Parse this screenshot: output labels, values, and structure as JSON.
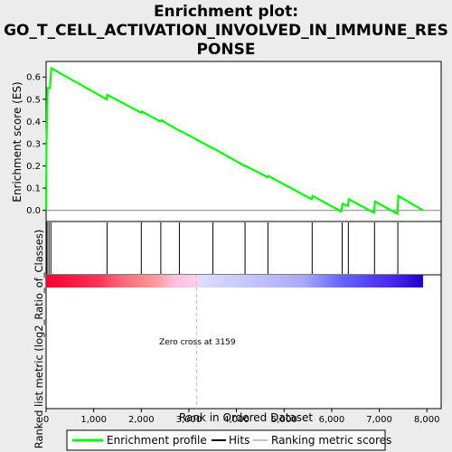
{
  "title_lines": [
    "Enrichment plot:",
    "GO_T_CELL_ACTIVATION_INVOLVED_IN_IMMUNE_RES",
    "PONSE"
  ],
  "colors": {
    "background": "#ececec",
    "plot_bg": "#ffffff",
    "es_line": "#00ff00",
    "hit": "#000000",
    "zero_line": "#808080",
    "zero_cross_line": "#c0c0c0"
  },
  "chart_data": {
    "type": "line",
    "ylabel_top": "Enrichment score (ES)",
    "ylabel_bottom": "Ranked list metric (log2_Ratio_of_Classes)",
    "xlabel": "Rank in Ordered Dataset",
    "xlim": [
      0,
      8300
    ],
    "ylim": [
      -0.05,
      0.67
    ],
    "x_ticks": [
      0,
      1000,
      2000,
      3000,
      4000,
      5000,
      6000,
      7000,
      8000
    ],
    "x_tick_labels": [
      "0",
      "1,000",
      "2,000",
      "3,000",
      "4,000",
      "5,000",
      "6,000",
      "7,000",
      "8,000"
    ],
    "y_ticks": [
      0.0,
      0.1,
      0.2,
      0.3,
      0.4,
      0.5,
      0.6
    ],
    "y_tick_labels": [
      "0.0",
      "0.1",
      "0.2",
      "0.3",
      "0.4",
      "0.5",
      "0.6"
    ],
    "es_points": [
      [
        0,
        0.0
      ],
      [
        10,
        0.31
      ],
      [
        30,
        0.55
      ],
      [
        80,
        0.55
      ],
      [
        110,
        0.64
      ],
      [
        1270,
        0.5
      ],
      [
        1285,
        0.52
      ],
      [
        1990,
        0.44
      ],
      [
        2010,
        0.445
      ],
      [
        2400,
        0.4
      ],
      [
        2420,
        0.405
      ],
      [
        2790,
        0.36
      ],
      [
        2800,
        0.36
      ],
      [
        3500,
        0.28
      ],
      [
        3510,
        0.28
      ],
      [
        4170,
        0.2
      ],
      [
        4190,
        0.2
      ],
      [
        4650,
        0.15
      ],
      [
        4670,
        0.155
      ],
      [
        5580,
        0.05
      ],
      [
        5600,
        0.065
      ],
      [
        6200,
        -0.005
      ],
      [
        6230,
        0.03
      ],
      [
        6340,
        0.02
      ],
      [
        6360,
        0.05
      ],
      [
        6890,
        -0.01
      ],
      [
        6910,
        0.04
      ],
      [
        7380,
        -0.015
      ],
      [
        7400,
        0.065
      ],
      [
        7920,
        0.0
      ]
    ],
    "hits": [
      20,
      60,
      100,
      1280,
      2000,
      2410,
      2800,
      3505,
      4180,
      4660,
      5590,
      6220,
      6350,
      6900,
      7390
    ],
    "zero_cross_rank": 3159,
    "zero_cross_label": "Zero cross at 3159",
    "metric_gradient_stops": [
      {
        "offset": 0.0,
        "color": "#ff0033"
      },
      {
        "offset": 0.14,
        "color": "#ff3355"
      },
      {
        "offset": 0.2,
        "color": "#ff6677"
      },
      {
        "offset": 0.29,
        "color": "#ff9999"
      },
      {
        "offset": 0.34,
        "color": "#ffc0dd"
      },
      {
        "offset": 0.4,
        "color": "#ffd0ee"
      },
      {
        "offset": 0.41,
        "color": "#ddddff"
      },
      {
        "offset": 0.68,
        "color": "#aaaaff"
      },
      {
        "offset": 0.78,
        "color": "#6666ff"
      },
      {
        "offset": 0.93,
        "color": "#4422ee"
      },
      {
        "offset": 1.0,
        "color": "#2200cc"
      }
    ],
    "legend": [
      {
        "label": "Enrichment profile",
        "kind": "es"
      },
      {
        "label": "Hits",
        "kind": "hit"
      },
      {
        "label": "Ranking metric scores",
        "kind": "metric"
      }
    ]
  }
}
